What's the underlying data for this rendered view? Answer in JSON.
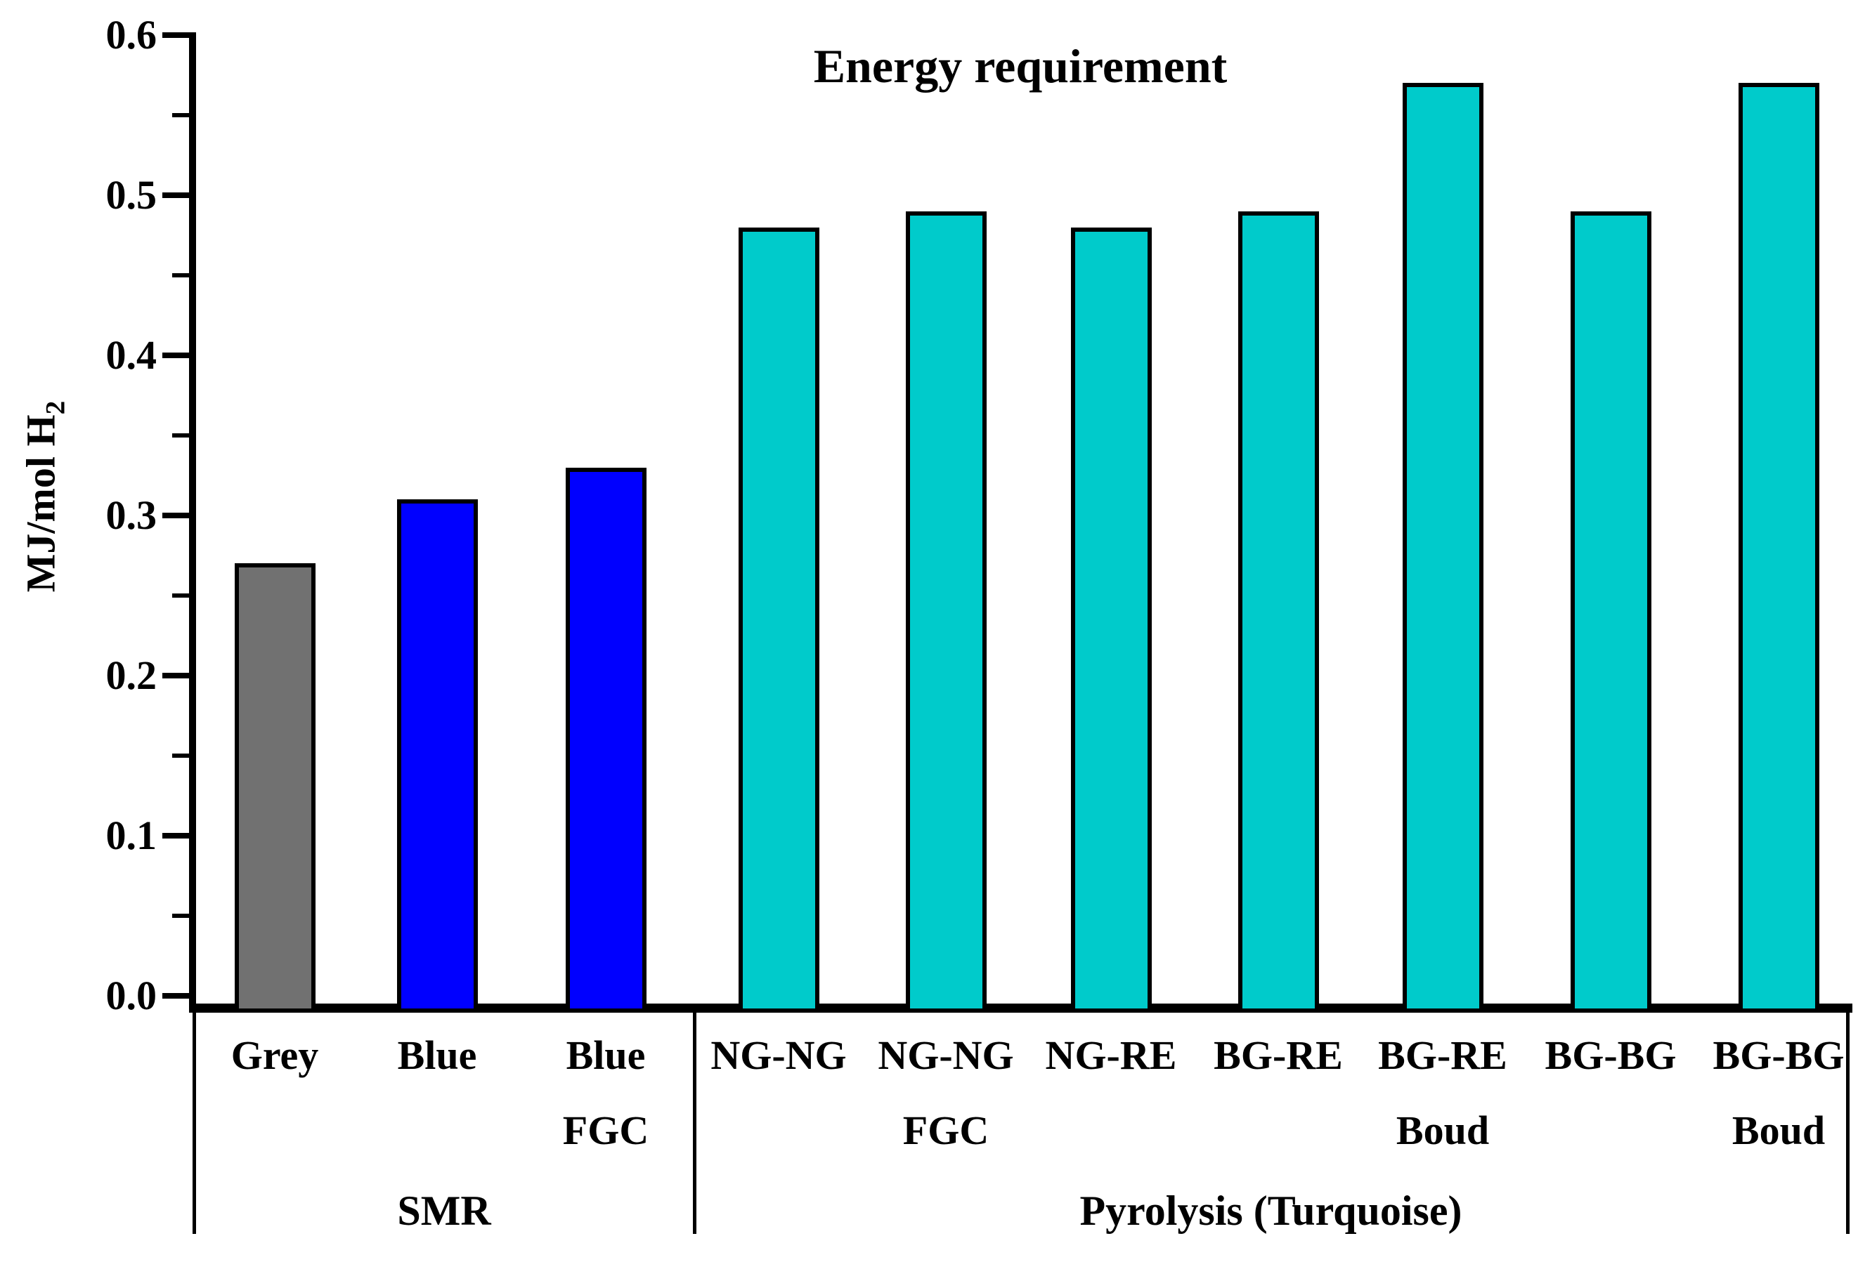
{
  "title": "Energy requirement",
  "y_axis": {
    "label": "MJ/mol H",
    "label_subscript": "2",
    "tick_labels": [
      "0.0",
      "0.1",
      "0.2",
      "0.3",
      "0.4",
      "0.5",
      "0.6"
    ],
    "min": 0.0,
    "max": 0.6,
    "major_step": 0.1,
    "minor_step": 0.05
  },
  "chart_data": {
    "type": "bar",
    "title": "Energy requirement",
    "ylabel": "MJ/mol H2",
    "xlabel": "",
    "ylim": [
      0,
      0.6
    ],
    "grid": false,
    "legend_position": "none",
    "categories": [
      "Grey",
      "Blue",
      "Blue FGC",
      "NG-NG",
      "NG-NG FGC",
      "NG-RE",
      "BG-RE",
      "BG-RE Boud",
      "BG-BG",
      "BG-BG Boud"
    ],
    "values": [
      0.27,
      0.31,
      0.33,
      0.48,
      0.49,
      0.48,
      0.49,
      0.57,
      0.49,
      0.57
    ],
    "bar_labels_line1": [
      "Grey",
      "Blue",
      "Blue",
      "NG-NG",
      "NG-NG",
      "NG-RE",
      "BG-RE",
      "BG-RE",
      "BG-BG",
      "BG-BG"
    ],
    "bar_labels_line2": [
      "",
      "",
      "FGC",
      "",
      "FGC",
      "",
      "",
      "Boud",
      "",
      "Boud"
    ],
    "bar_colors": [
      "#717171",
      "#0000FF",
      "#0000FF",
      "#00CBCB",
      "#00CBCB",
      "#00CBCB",
      "#00CBCB",
      "#00CBCB",
      "#00CBCB",
      "#00CBCB"
    ],
    "groups": [
      {
        "label": "SMR",
        "start_index": 0,
        "end_index": 2
      },
      {
        "label": "Pyrolysis (Turquoise)",
        "start_index": 3,
        "end_index": 9
      }
    ]
  },
  "colors": {
    "grey_bar": "#717171",
    "blue_bar": "#0000FF",
    "turquoise_bar": "#00CBCB",
    "axis": "#000000",
    "background": "#FFFFFF"
  }
}
